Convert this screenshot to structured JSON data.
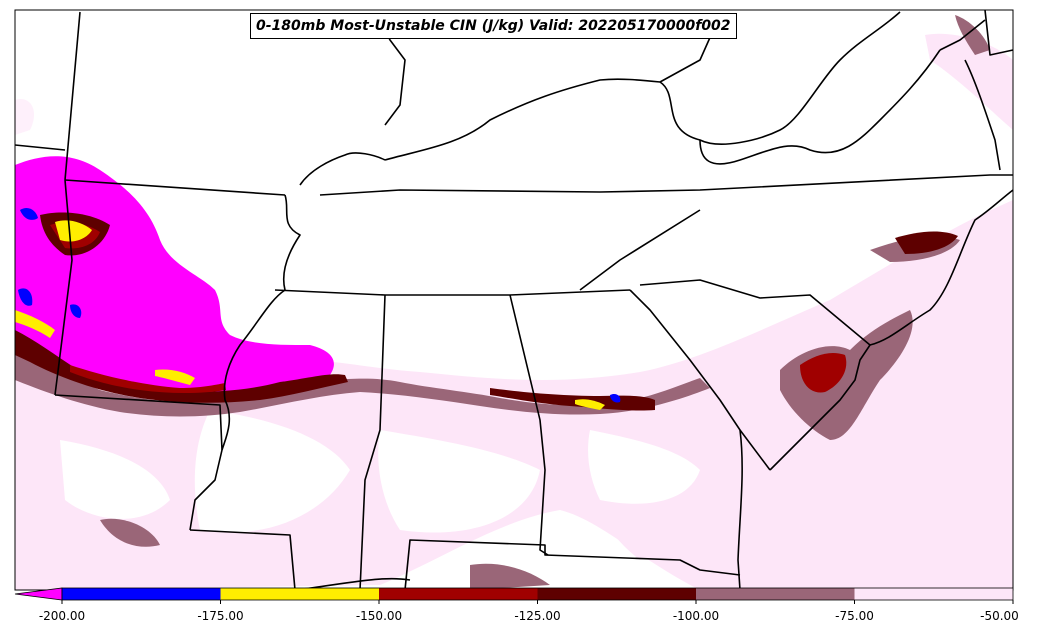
{
  "title": "0-180mb Most-Unstable CIN (J/kg) Valid: 202205170000f002",
  "colorbar": {
    "ticks": [
      "-200.00",
      "-175.00",
      "-150.00",
      "-125.00",
      "-100.00",
      "-75.00",
      "-50.00"
    ],
    "bins": [
      {
        "from": -200,
        "to": -175,
        "color": "#0000ff"
      },
      {
        "from": -175,
        "to": -150,
        "color": "#ffee00"
      },
      {
        "from": -150,
        "to": -125,
        "color": "#a00000"
      },
      {
        "from": -125,
        "to": -100,
        "color": "#5e0000"
      },
      {
        "from": -100,
        "to": -75,
        "color": "#9a6678"
      },
      {
        "from": -75,
        "to": -50,
        "color": "#fde6f8"
      }
    ],
    "under_color": "#ff00ff"
  },
  "colors": {
    "magenta": "#ff00ff",
    "blue": "#0000ff",
    "yellow": "#ffee00",
    "red": "#a00000",
    "dark_red": "#5e0000",
    "mauve": "#9a6678",
    "pink": "#fde6f8",
    "border": "#000000"
  }
}
